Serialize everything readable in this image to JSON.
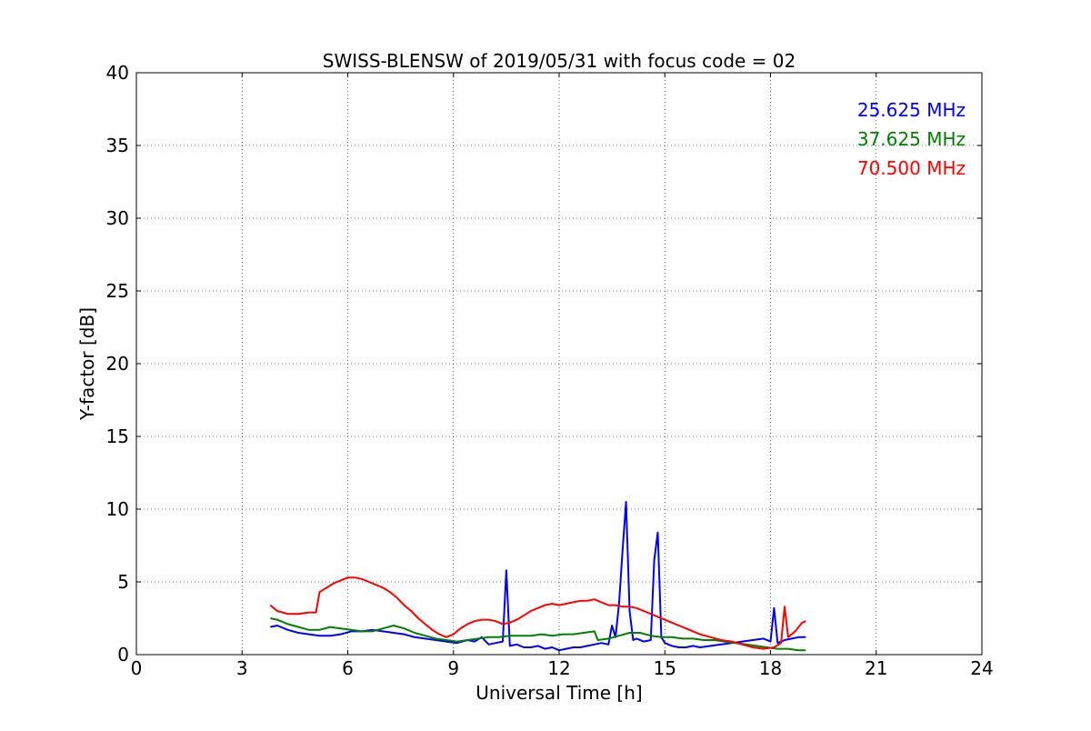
{
  "chart_data": {
    "type": "line",
    "title": "SWISS-BLENSW of 2019/05/31 with focus code = 02",
    "xlabel": "Universal Time [h]",
    "ylabel": "Y-factor [dB]",
    "xlim": [
      0,
      24
    ],
    "ylim": [
      0,
      40
    ],
    "xticks": [
      0,
      3,
      6,
      9,
      12,
      15,
      18,
      21,
      24
    ],
    "yticks": [
      0,
      5,
      10,
      15,
      20,
      25,
      30,
      35,
      40
    ],
    "grid": true,
    "legend_position": "top-right",
    "series": [
      {
        "name": "25.625 MHz",
        "color": "#0000ff",
        "x": [
          3.8,
          4.0,
          4.3,
          4.6,
          4.9,
          5.2,
          5.5,
          5.8,
          6.1,
          6.4,
          6.7,
          7.0,
          7.3,
          7.6,
          7.9,
          8.2,
          8.5,
          8.8,
          9.1,
          9.4,
          9.6,
          9.8,
          10.0,
          10.2,
          10.4,
          10.5,
          10.6,
          10.8,
          11.0,
          11.2,
          11.4,
          11.6,
          11.8,
          12.0,
          12.2,
          12.4,
          12.6,
          12.8,
          13.0,
          13.2,
          13.4,
          13.5,
          13.6,
          13.7,
          13.8,
          13.9,
          14.0,
          14.1,
          14.2,
          14.4,
          14.6,
          14.7,
          14.8,
          14.9,
          15.0,
          15.2,
          15.4,
          15.6,
          15.8,
          16.0,
          16.3,
          16.6,
          16.9,
          17.2,
          17.5,
          17.8,
          18.0,
          18.1,
          18.2,
          18.4,
          18.6,
          18.8,
          19.0
        ],
        "y": [
          1.9,
          2.0,
          1.7,
          1.5,
          1.4,
          1.3,
          1.3,
          1.4,
          1.6,
          1.6,
          1.7,
          1.6,
          1.5,
          1.4,
          1.2,
          1.1,
          1.0,
          0.9,
          0.8,
          1.0,
          0.9,
          1.2,
          0.7,
          0.8,
          0.9,
          5.8,
          0.6,
          0.7,
          0.5,
          0.5,
          0.6,
          0.4,
          0.5,
          0.3,
          0.4,
          0.5,
          0.5,
          0.6,
          0.7,
          0.8,
          0.7,
          2.0,
          1.2,
          3.5,
          7.2,
          10.5,
          3.0,
          1.0,
          1.1,
          0.9,
          1.0,
          6.5,
          8.4,
          1.2,
          0.8,
          0.6,
          0.5,
          0.5,
          0.6,
          0.5,
          0.6,
          0.7,
          0.8,
          0.9,
          1.0,
          1.1,
          0.9,
          3.2,
          0.8,
          1.0,
          1.1,
          1.2,
          1.2
        ]
      },
      {
        "name": "37.625 MHz",
        "color": "#008000",
        "x": [
          3.8,
          4.0,
          4.3,
          4.6,
          4.9,
          5.2,
          5.5,
          5.8,
          6.1,
          6.4,
          6.7,
          7.0,
          7.3,
          7.6,
          7.9,
          8.2,
          8.5,
          8.8,
          9.1,
          9.4,
          9.7,
          10.0,
          10.3,
          10.6,
          10.9,
          11.2,
          11.5,
          11.8,
          12.1,
          12.4,
          12.7,
          13.0,
          13.1,
          13.4,
          13.7,
          14.0,
          14.3,
          14.6,
          14.9,
          15.2,
          15.5,
          15.8,
          16.1,
          16.4,
          16.7,
          17.0,
          17.3,
          17.6,
          17.9,
          18.2,
          18.5,
          18.8,
          19.0
        ],
        "y": [
          2.5,
          2.4,
          2.1,
          1.9,
          1.7,
          1.7,
          1.9,
          1.8,
          1.7,
          1.6,
          1.6,
          1.8,
          2.0,
          1.8,
          1.5,
          1.3,
          1.1,
          1.0,
          0.9,
          1.0,
          1.1,
          1.2,
          1.2,
          1.3,
          1.3,
          1.3,
          1.4,
          1.3,
          1.4,
          1.4,
          1.5,
          1.6,
          1.0,
          1.1,
          1.3,
          1.5,
          1.5,
          1.3,
          1.2,
          1.2,
          1.1,
          1.1,
          1.0,
          1.0,
          0.9,
          0.8,
          0.7,
          0.6,
          0.5,
          0.4,
          0.4,
          0.3,
          0.3
        ]
      },
      {
        "name": "70.500 MHz",
        "color": "#ff0000",
        "x": [
          3.8,
          4.0,
          4.3,
          4.6,
          4.9,
          5.1,
          5.2,
          5.4,
          5.6,
          5.8,
          6.0,
          6.2,
          6.4,
          6.6,
          6.8,
          7.0,
          7.2,
          7.4,
          7.6,
          7.8,
          8.0,
          8.2,
          8.4,
          8.6,
          8.8,
          9.0,
          9.2,
          9.4,
          9.6,
          9.8,
          10.0,
          10.2,
          10.4,
          10.6,
          10.8,
          11.0,
          11.2,
          11.4,
          11.6,
          11.8,
          12.0,
          12.2,
          12.4,
          12.6,
          12.8,
          13.0,
          13.2,
          13.4,
          13.6,
          13.8,
          14.0,
          14.2,
          14.4,
          14.6,
          14.8,
          15.0,
          15.2,
          15.4,
          15.6,
          15.8,
          16.0,
          16.3,
          16.6,
          16.9,
          17.2,
          17.5,
          17.8,
          18.1,
          18.3,
          18.4,
          18.5,
          18.7,
          18.9,
          19.0
        ],
        "y": [
          3.4,
          3.0,
          2.8,
          2.8,
          2.9,
          2.9,
          4.3,
          4.6,
          4.9,
          5.1,
          5.3,
          5.3,
          5.2,
          5.0,
          4.8,
          4.6,
          4.3,
          3.9,
          3.4,
          3.0,
          2.5,
          2.1,
          1.7,
          1.4,
          1.2,
          1.4,
          1.8,
          2.1,
          2.3,
          2.4,
          2.4,
          2.3,
          2.1,
          2.2,
          2.4,
          2.7,
          3.0,
          3.2,
          3.4,
          3.5,
          3.4,
          3.5,
          3.6,
          3.7,
          3.7,
          3.8,
          3.6,
          3.4,
          3.4,
          3.3,
          3.3,
          3.2,
          3.0,
          2.8,
          2.6,
          2.4,
          2.2,
          2.0,
          1.8,
          1.6,
          1.4,
          1.2,
          1.0,
          0.9,
          0.7,
          0.5,
          0.4,
          0.5,
          0.8,
          3.3,
          1.2,
          1.6,
          2.2,
          2.3
        ]
      }
    ]
  }
}
